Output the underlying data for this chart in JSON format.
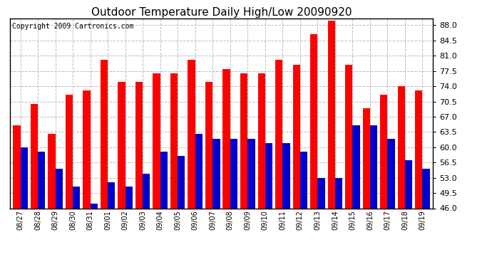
{
  "title": "Outdoor Temperature Daily High/Low 20090920",
  "copyright": "Copyright 2009 Cartronics.com",
  "dates": [
    "08/27",
    "08/28",
    "08/29",
    "08/30",
    "08/31",
    "09/01",
    "09/02",
    "09/03",
    "09/04",
    "09/05",
    "09/06",
    "09/07",
    "09/08",
    "09/09",
    "09/10",
    "09/11",
    "09/12",
    "09/13",
    "09/14",
    "09/15",
    "09/16",
    "09/17",
    "09/18",
    "09/19"
  ],
  "highs": [
    65,
    70,
    63,
    72,
    73,
    80,
    75,
    75,
    77,
    77,
    80,
    75,
    78,
    77,
    77,
    80,
    79,
    86,
    89,
    79,
    69,
    72,
    74,
    73
  ],
  "lows": [
    60,
    59,
    55,
    51,
    47,
    52,
    51,
    54,
    59,
    58,
    63,
    62,
    62,
    62,
    61,
    61,
    59,
    53,
    53,
    65,
    65,
    62,
    57,
    55
  ],
  "bar_width": 0.42,
  "ylim": [
    46,
    89.5
  ],
  "yticks": [
    46.0,
    49.5,
    53.0,
    56.5,
    60.0,
    63.5,
    67.0,
    70.5,
    74.0,
    77.5,
    81.0,
    84.5,
    88.0
  ],
  "high_color": "#ff0000",
  "low_color": "#0000cc",
  "bg_color": "#ffffff",
  "plot_bg_color": "#ffffff",
  "grid_color": "#bbbbbb",
  "title_fontsize": 11,
  "copyright_fontsize": 7,
  "figwidth": 6.9,
  "figheight": 3.75,
  "dpi": 100
}
